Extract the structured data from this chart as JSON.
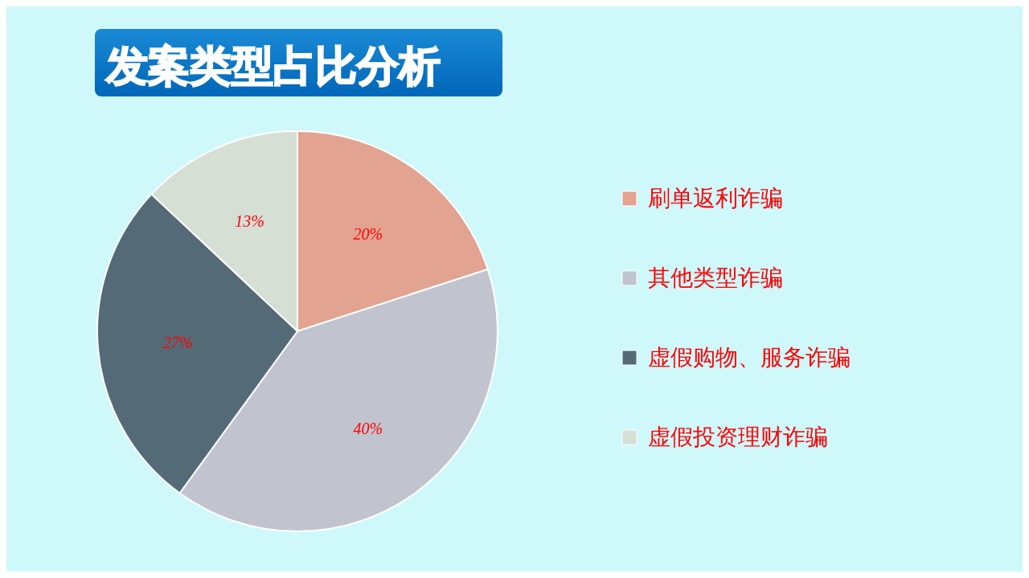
{
  "chart_data": {
    "type": "pie",
    "title": "发案类型占比分析",
    "categories": [
      "刷单返利诈骗",
      "其他类型诈骗",
      "虚假购物、服务诈骗",
      "虚假投资理财诈骗"
    ],
    "values": [
      20,
      40,
      27,
      13
    ],
    "colors": [
      "#e3a391",
      "#c1c4cf",
      "#546b77",
      "#d5dfd3"
    ],
    "value_labels": [
      "20%",
      "40%",
      "27%",
      "13%"
    ],
    "legend": "right"
  }
}
